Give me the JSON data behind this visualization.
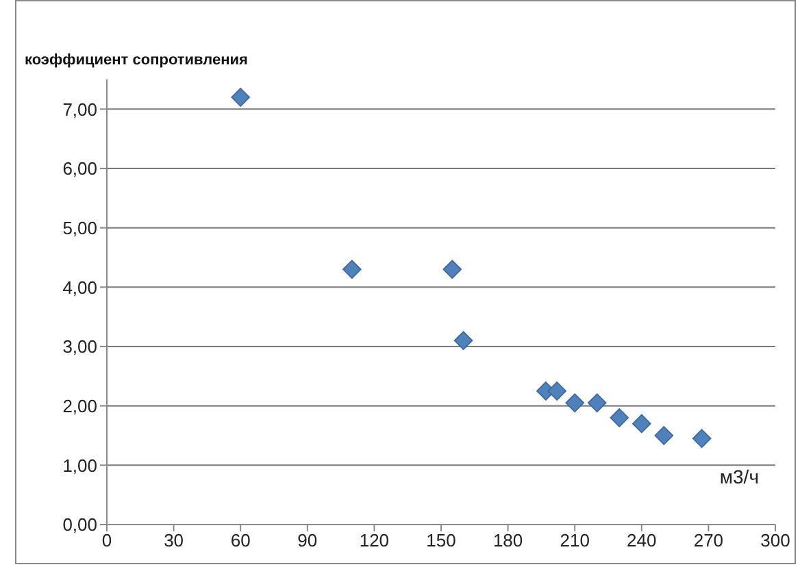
{
  "chart_data": {
    "type": "scatter",
    "xlabel": "м3/ч",
    "ylabel": "коэффициент сопротивления",
    "x": [
      60,
      110,
      155,
      160,
      197,
      202,
      210,
      220,
      230,
      240,
      250,
      267
    ],
    "values": [
      7.2,
      4.3,
      4.3,
      3.1,
      2.25,
      2.25,
      2.05,
      2.05,
      1.8,
      1.7,
      1.5,
      1.45
    ],
    "color": "#4f81bd",
    "marker": "diamond",
    "xlim": [
      0,
      300
    ],
    "xticks": [
      0,
      30,
      60,
      90,
      120,
      150,
      180,
      210,
      240,
      270,
      300
    ],
    "ylim": [
      0,
      7.5
    ],
    "yticks": [
      {
        "value": 0,
        "label": "0,00"
      },
      {
        "value": 1,
        "label": "1,00"
      },
      {
        "value": 2,
        "label": "2,00"
      },
      {
        "value": 3,
        "label": "3,00"
      },
      {
        "value": 4,
        "label": "4,00"
      },
      {
        "value": 5,
        "label": "5,00"
      },
      {
        "value": 6,
        "label": "6,00"
      },
      {
        "value": 7,
        "label": "7,00"
      }
    ],
    "grid": "y"
  }
}
